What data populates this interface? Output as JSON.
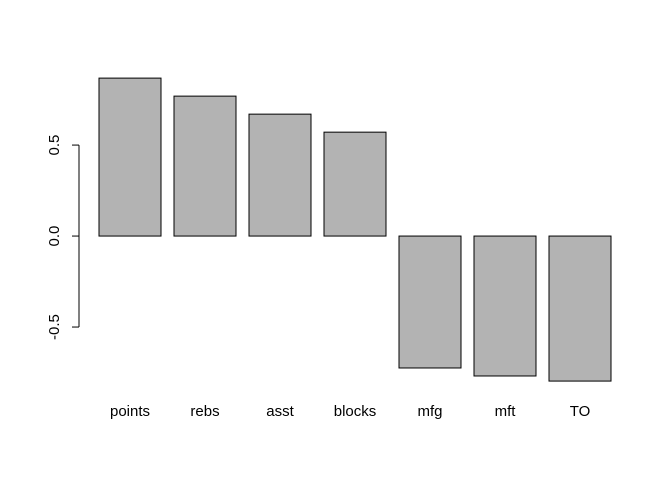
{
  "chart_data": {
    "type": "bar",
    "categories": [
      "points",
      "rebs",
      "asst",
      "blocks",
      "mfg",
      "mft",
      "TO"
    ],
    "values": [
      0.868,
      0.769,
      0.67,
      0.571,
      -0.725,
      -0.769,
      -0.797
    ],
    "color": "#b3b3b3",
    "ylim": [
      -0.868,
      0.973
    ],
    "yticks": [
      -0.5,
      {
        "value": 0,
        "label": "0.0"
      },
      0.5
    ]
  }
}
